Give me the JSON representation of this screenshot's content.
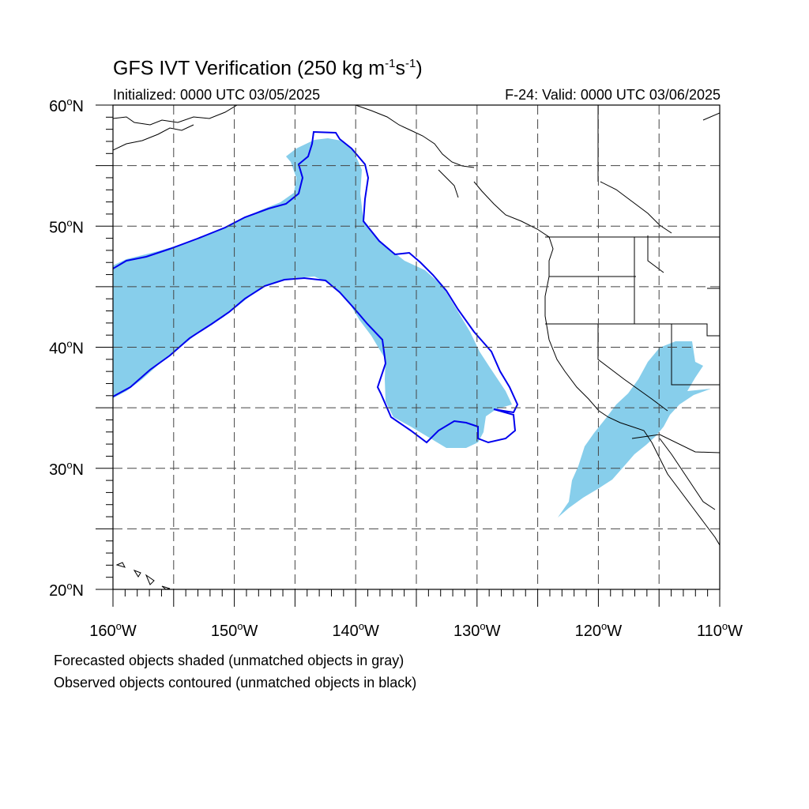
{
  "title": {
    "main": "GFS IVT Verification (250 kg m",
    "sup1": "-1",
    "mid": "s",
    "sup2": "-1",
    "end": ")"
  },
  "initialized": "Initialized: 0000 UTC 03/05/2025",
  "valid": "F-24: Valid: 0000 UTC 03/06/2025",
  "footer": {
    "line1": "Forecasted objects shaded (unmatched objects in gray)",
    "line2": "Observed objects contoured (unmatched objects in black)"
  },
  "map": {
    "lon_range": [
      -160,
      -110
    ],
    "lat_range": [
      20,
      60
    ],
    "lat_labels": [
      {
        "value": 60,
        "text": "60",
        "hemi": "N"
      },
      {
        "value": 50,
        "text": "50",
        "hemi": "N"
      },
      {
        "value": 40,
        "text": "40",
        "hemi": "N"
      },
      {
        "value": 30,
        "text": "30",
        "hemi": "N"
      },
      {
        "value": 20,
        "text": "20",
        "hemi": "N"
      }
    ],
    "lon_labels": [
      {
        "value": -160,
        "text": "160",
        "hemi": "W"
      },
      {
        "value": -150,
        "text": "150",
        "hemi": "W"
      },
      {
        "value": -140,
        "text": "140",
        "hemi": "W"
      },
      {
        "value": -130,
        "text": "130",
        "hemi": "W"
      },
      {
        "value": -120,
        "text": "120",
        "hemi": "W"
      },
      {
        "value": -110,
        "text": "110",
        "hemi": "W"
      }
    ],
    "colors": {
      "forecast_fill": "#87ceeb",
      "observed_contour": "#0000ee",
      "coastline": "#000000",
      "grid": "#444444"
    }
  }
}
